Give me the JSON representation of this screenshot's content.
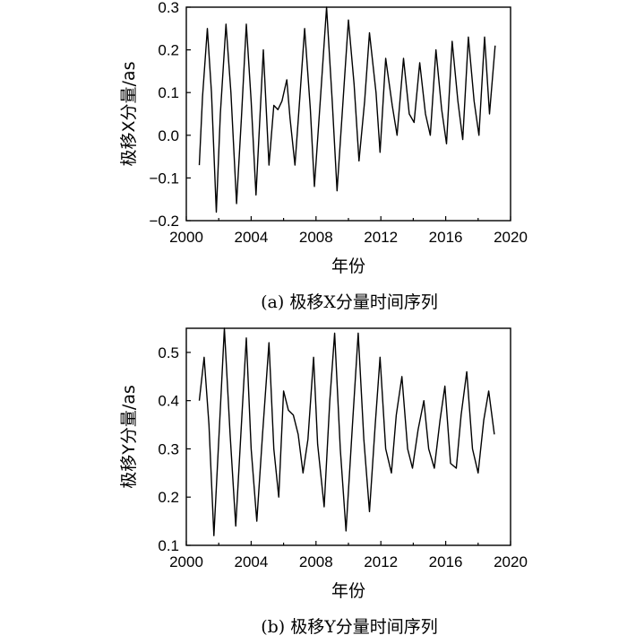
{
  "chart_data": [
    {
      "type": "line",
      "xlabel": "年份",
      "ylabel": "极移X分量/as",
      "caption": "(a) 极移X分量时间序列",
      "xlim": [
        2000,
        2020
      ],
      "ylim": [
        -0.2,
        0.3
      ],
      "xticks": [
        "2000",
        "2004",
        "2008",
        "2012",
        "2016",
        "2020"
      ],
      "yticks": [
        "0.3",
        "0.2",
        "0.1",
        "0.0",
        "−0.1",
        "−0.2"
      ],
      "series": [
        {
          "x": [
            2000.8,
            2001.0,
            2001.3,
            2001.55,
            2001.85,
            2002.1,
            2002.45,
            2002.75,
            2003.1,
            2003.4,
            2003.7,
            2004.0,
            2004.3,
            2004.75,
            2005.1,
            2005.4,
            2005.65,
            2005.9,
            2006.2,
            2006.4,
            2006.7,
            2006.95,
            2007.3,
            2007.65,
            2007.9,
            2008.3,
            2008.65,
            2009.0,
            2009.3,
            2009.7,
            2010.0,
            2010.35,
            2010.65,
            2011.0,
            2011.3,
            2011.7,
            2011.95,
            2012.3,
            2012.7,
            2013.0,
            2013.4,
            2013.75,
            2014.05,
            2014.4,
            2014.75,
            2015.05,
            2015.4,
            2015.75,
            2016.05,
            2016.4,
            2016.75,
            2017.05,
            2017.4,
            2017.75,
            2018.05,
            2018.4,
            2018.7,
            2019.05
          ],
          "y": [
            -0.07,
            0.09,
            0.25,
            0.1,
            -0.18,
            0.05,
            0.26,
            0.1,
            -0.16,
            0.04,
            0.26,
            0.08,
            -0.14,
            0.2,
            -0.07,
            0.07,
            0.06,
            0.08,
            0.13,
            0.04,
            -0.07,
            0.06,
            0.25,
            0.06,
            -0.12,
            0.1,
            0.3,
            0.08,
            -0.13,
            0.1,
            0.27,
            0.12,
            -0.06,
            0.08,
            0.24,
            0.1,
            -0.04,
            0.18,
            0.07,
            0.0,
            0.18,
            0.05,
            0.03,
            0.17,
            0.05,
            0.0,
            0.2,
            0.06,
            -0.02,
            0.22,
            0.08,
            -0.01,
            0.23,
            0.08,
            0.0,
            0.23,
            0.05,
            0.21
          ]
        }
      ]
    },
    {
      "type": "line",
      "xlabel": "年份",
      "ylabel": "极移Y分量/as",
      "caption": "(b) 极移Y分量时间序列",
      "xlim": [
        2000,
        2020
      ],
      "ylim": [
        0.1,
        0.55
      ],
      "xticks": [
        "2000",
        "2004",
        "2008",
        "2012",
        "2016",
        "2020"
      ],
      "yticks": [
        "0.5",
        "0.4",
        "0.3",
        "0.2",
        "0.1"
      ],
      "series": [
        {
          "x": [
            2000.8,
            2001.1,
            2001.4,
            2001.7,
            2002.05,
            2002.35,
            2002.7,
            2003.05,
            2003.4,
            2003.7,
            2004.0,
            2004.35,
            2004.7,
            2005.1,
            2005.4,
            2005.7,
            2006.0,
            2006.3,
            2006.6,
            2006.9,
            2007.2,
            2007.5,
            2007.85,
            2008.1,
            2008.5,
            2008.85,
            2009.15,
            2009.5,
            2009.85,
            2010.25,
            2010.6,
            2010.95,
            2011.3,
            2011.65,
            2011.95,
            2012.3,
            2012.65,
            2012.95,
            2013.3,
            2013.65,
            2013.95,
            2014.3,
            2014.65,
            2014.95,
            2015.3,
            2015.65,
            2015.95,
            2016.3,
            2016.65,
            2016.95,
            2017.3,
            2017.65,
            2018.0,
            2018.35,
            2018.65,
            2019.0
          ],
          "y": [
            0.4,
            0.49,
            0.35,
            0.12,
            0.35,
            0.55,
            0.33,
            0.14,
            0.35,
            0.53,
            0.3,
            0.15,
            0.33,
            0.52,
            0.3,
            0.2,
            0.42,
            0.38,
            0.37,
            0.33,
            0.25,
            0.32,
            0.49,
            0.31,
            0.18,
            0.4,
            0.54,
            0.3,
            0.13,
            0.35,
            0.54,
            0.32,
            0.17,
            0.35,
            0.49,
            0.3,
            0.25,
            0.37,
            0.45,
            0.3,
            0.26,
            0.34,
            0.4,
            0.3,
            0.26,
            0.36,
            0.43,
            0.27,
            0.26,
            0.37,
            0.46,
            0.3,
            0.25,
            0.36,
            0.42,
            0.33
          ]
        }
      ]
    }
  ]
}
